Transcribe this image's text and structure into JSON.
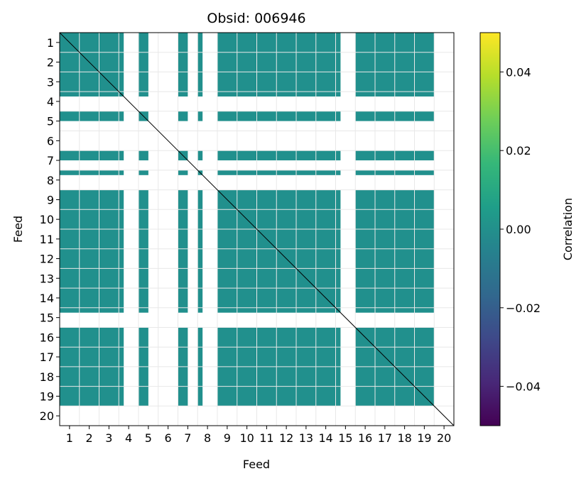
{
  "chart_data": {
    "type": "heatmap",
    "title": "Obsid: 006946",
    "xlabel": "Feed",
    "ylabel": "Feed",
    "feeds": [
      1,
      2,
      3,
      4,
      5,
      6,
      7,
      8,
      9,
      10,
      11,
      12,
      13,
      14,
      15,
      16,
      17,
      18,
      19,
      20
    ],
    "x_tick_labels": [
      "1",
      "2",
      "3",
      "4",
      "5",
      "6",
      "7",
      "8",
      "9",
      "10",
      "11",
      "12",
      "13",
      "14",
      "15",
      "16",
      "17",
      "18",
      "19",
      "20"
    ],
    "y_tick_labels": [
      "1",
      "2",
      "3",
      "4",
      "5",
      "6",
      "7",
      "8",
      "9",
      "10",
      "11",
      "12",
      "13",
      "14",
      "15",
      "16",
      "17",
      "18",
      "19",
      "20"
    ],
    "blocks_per_feed": 4,
    "valid_blocks_per_feed": [
      4,
      4,
      4,
      1,
      2,
      0,
      2,
      1,
      4,
      4,
      4,
      4,
      4,
      4,
      1,
      4,
      4,
      4,
      4,
      0
    ],
    "fill_value": 0.0,
    "fill_color": "#21908d",
    "diagonal_color": "#000000",
    "grid_color": "#e8e8e8",
    "colorbar": {
      "label": "Correlation",
      "colormap": "viridis",
      "vmin": -0.05,
      "vmax": 0.05,
      "ticks": [
        0.04,
        0.02,
        0.0,
        -0.02,
        -0.04
      ],
      "tick_labels": [
        "0.04",
        "0.02",
        "0.00",
        "−0.02",
        "−0.04"
      ],
      "colors": [
        "#440154",
        "#482878",
        "#3e4989",
        "#31688e",
        "#26828e",
        "#1f9e89",
        "#35b779",
        "#6ece58",
        "#b5de2b",
        "#fde725"
      ]
    }
  }
}
